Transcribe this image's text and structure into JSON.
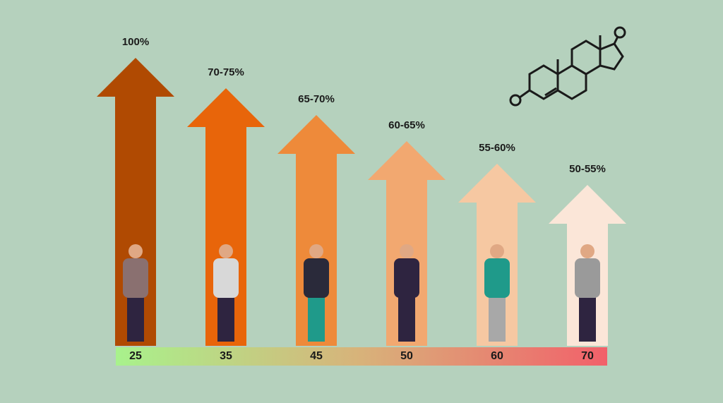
{
  "columns": [
    {
      "level": "100%",
      "age": "25"
    },
    {
      "level": "70-75%",
      "age": "35"
    },
    {
      "level": "65-70%",
      "age": "45"
    },
    {
      "level": "60-65%",
      "age": "50"
    },
    {
      "level": "55-60%",
      "age": "60"
    },
    {
      "level": "50-55%",
      "age": "70"
    }
  ]
}
